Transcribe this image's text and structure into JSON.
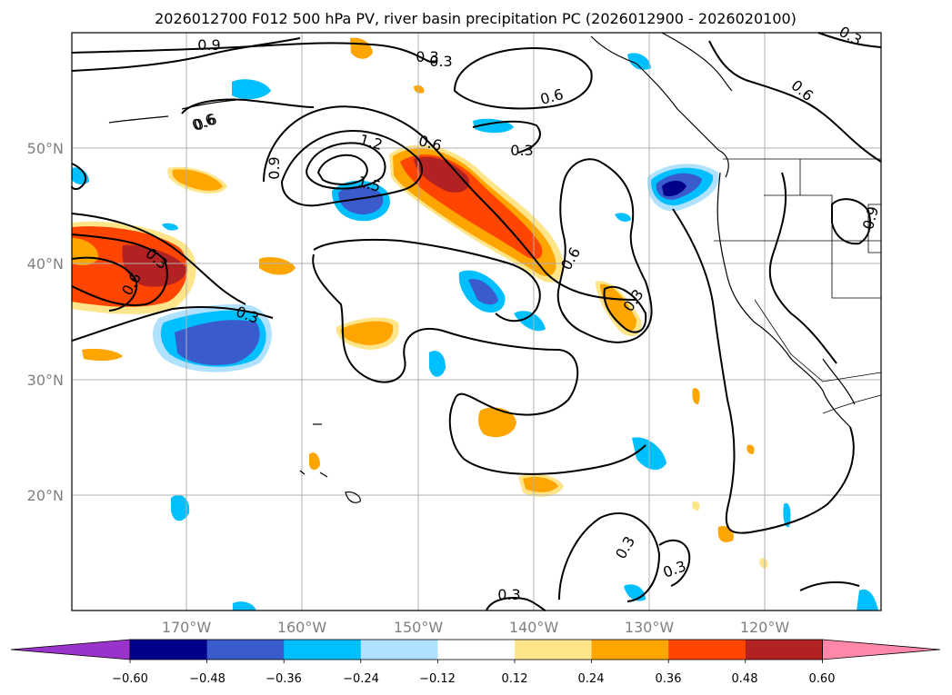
{
  "figure": {
    "title": "2026012700 F012 500 hPa PV, river basin precipitation PC (2026012900 - 2026020100)"
  },
  "axes": {
    "lat_labels": [
      "50°N",
      "40°N",
      "30°N",
      "20°N"
    ],
    "lon_labels": [
      "170°W",
      "160°W",
      "150°W",
      "140°W",
      "130°W",
      "120°W"
    ]
  },
  "contour_labels": [
    "0.9",
    "0.6",
    "0.3",
    "0.6",
    "0.3",
    "1.2",
    "1.5",
    "0.6",
    "0.9",
    "0.3",
    "0.6",
    "0.3",
    "0.6",
    "0.3",
    "0.6",
    "0.9",
    "0.3",
    "0.3",
    "0.3",
    "0.3",
    "0.6",
    "0.3"
  ],
  "colorbar": {
    "ticks": [
      "−0.60",
      "−0.48",
      "−0.36",
      "−0.24",
      "−0.12",
      "0.12",
      "0.24",
      "0.36",
      "0.48",
      "0.60"
    ],
    "colors": [
      "#9933cc",
      "#00008b",
      "#3a5bcc",
      "#00bfff",
      "#b0e2ff",
      "#ffffff",
      "#ffe58a",
      "#ffa500",
      "#ff4500",
      "#b22222",
      "#ff88aa"
    ]
  }
}
